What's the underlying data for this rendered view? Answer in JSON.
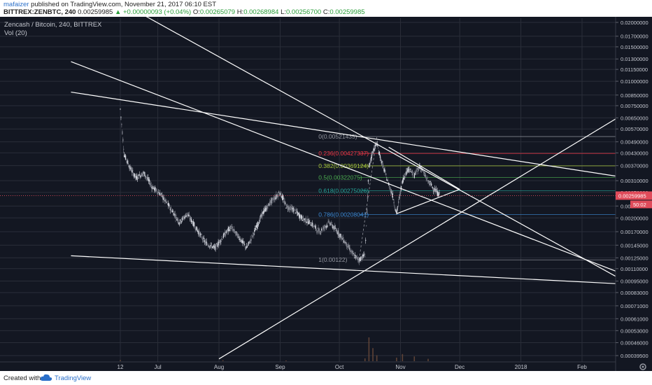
{
  "header": {
    "author": "mafaizer",
    "published": "published on TradingView.com, November 21, 2017 06:10 EST",
    "symbol": "BITTREX:ZENBTC, 240",
    "price": "0.00259985",
    "change_arrow": "▲",
    "change": "+0.00000093 (+0.04%)",
    "o_label": "O:",
    "o_value": "0.00265079",
    "h_label": "H:",
    "h_value": "0.00268984",
    "l_label": "L:",
    "l_value": "0.00256700",
    "c_label": "C:",
    "c_value": "0.00259985"
  },
  "legend": {
    "title": "Zencash / Bitcoin, 240, BITTREX",
    "volume": "Vol (20)",
    "settings_icon": "gear-icon"
  },
  "footer": {
    "created": "Created with",
    "brand": "TradingView",
    "logo_icon": "tradingview-cloud-icon"
  },
  "colors": {
    "background": "#131722",
    "grid": "#2a2e39",
    "up": "#d1d4dc",
    "down": "#787b86",
    "trendline": "#ffffff",
    "price_line": "#e04b5a",
    "axis_text": "#c5c8d0"
  },
  "chart_data": {
    "type": "candlestick",
    "title": "Zencash / Bitcoin, 240, BITTREX",
    "y_tick_labels": [
      "0.02000000",
      "0.01700000",
      "0.01500000",
      "0.01300000",
      "0.01150000",
      "0.01000000",
      "0.00850000",
      "0.00750000",
      "0.00650000",
      "0.00570000",
      "0.00490000",
      "0.00430000",
      "0.00370000",
      "0.00310000",
      "0.00270000",
      "0.00230000",
      "0.00200000",
      "0.00170000",
      "0.00145000",
      "0.00125000",
      "0.00110000",
      "0.00095000",
      "0.00083000",
      "0.00071000",
      "0.00061000",
      "0.00053000",
      "0.00046000",
      "0.00039500"
    ],
    "y_ticks": [
      0.02,
      0.017,
      0.015,
      0.013,
      0.0115,
      0.01,
      0.0085,
      0.0075,
      0.0065,
      0.0057,
      0.0049,
      0.0043,
      0.0037,
      0.0031,
      0.0027,
      0.0023,
      0.002,
      0.0017,
      0.00145,
      0.00125,
      0.0011,
      0.00095,
      0.00083,
      0.00071,
      0.00061,
      0.00053,
      0.00046,
      0.000395
    ],
    "y_scale": "log",
    "x_tick_labels": [
      "12",
      "Jul",
      "Aug",
      "Sep",
      "Oct",
      "Nov",
      "Dec",
      "2018",
      "Feb"
    ],
    "x_ticks": [
      "2017-06-12",
      "2017-07-01",
      "2017-08-01",
      "2017-09-01",
      "2017-10-01",
      "2017-11-01",
      "2017-12-01",
      "2018-01-01",
      "2018-02-01"
    ],
    "last_price": 0.00259985,
    "last_price_label": "0.00259985",
    "countdown_label": "50:02",
    "fibonacci": [
      {
        "level": "0",
        "price": 0.00521435,
        "label": "0(0.00521435)",
        "color": "#9598a1"
      },
      {
        "level": "0.236",
        "price": 0.00427337,
        "label": "0.236(0.00427337)",
        "color": "#f23645"
      },
      {
        "level": "0.382",
        "price": 0.00369124,
        "label": "0.382(0.00369124)",
        "color": "#a8c93a"
      },
      {
        "level": "0.5",
        "price": 0.00322075,
        "label": "0.5(0.00322075)",
        "color": "#4caf50"
      },
      {
        "level": "0.618",
        "price": 0.00275026,
        "label": "0.618(0.00275026)",
        "color": "#26a69a"
      },
      {
        "level": "0.786",
        "price": 0.00208041,
        "label": "0.786(0.00208041)",
        "color": "#3d8bd6"
      },
      {
        "level": "1",
        "price": 0.00122,
        "label": "1(0.00122)",
        "color": "#9598a1"
      }
    ],
    "price_path": [
      {
        "date": "2017-06-12",
        "price": 0.0072
      },
      {
        "date": "2017-06-14",
        "price": 0.0042
      },
      {
        "date": "2017-06-17",
        "price": 0.0036
      },
      {
        "date": "2017-06-20",
        "price": 0.0032
      },
      {
        "date": "2017-06-24",
        "price": 0.0034
      },
      {
        "date": "2017-06-28",
        "price": 0.0029
      },
      {
        "date": "2017-07-03",
        "price": 0.0026
      },
      {
        "date": "2017-07-08",
        "price": 0.0022
      },
      {
        "date": "2017-07-12",
        "price": 0.0019
      },
      {
        "date": "2017-07-16",
        "price": 0.0021
      },
      {
        "date": "2017-07-20",
        "price": 0.0018
      },
      {
        "date": "2017-07-25",
        "price": 0.0015
      },
      {
        "date": "2017-07-30",
        "price": 0.0014
      },
      {
        "date": "2017-08-03",
        "price": 0.0016
      },
      {
        "date": "2017-08-07",
        "price": 0.0018
      },
      {
        "date": "2017-08-11",
        "price": 0.0016
      },
      {
        "date": "2017-08-15",
        "price": 0.0014
      },
      {
        "date": "2017-08-19",
        "price": 0.0017
      },
      {
        "date": "2017-08-23",
        "price": 0.0021
      },
      {
        "date": "2017-08-27",
        "price": 0.0024
      },
      {
        "date": "2017-09-01",
        "price": 0.0027
      },
      {
        "date": "2017-09-04",
        "price": 0.0023
      },
      {
        "date": "2017-09-08",
        "price": 0.0022
      },
      {
        "date": "2017-09-12",
        "price": 0.002
      },
      {
        "date": "2017-09-16",
        "price": 0.0019
      },
      {
        "date": "2017-09-21",
        "price": 0.0017
      },
      {
        "date": "2017-09-26",
        "price": 0.0019
      },
      {
        "date": "2017-09-30",
        "price": 0.0017
      },
      {
        "date": "2017-10-04",
        "price": 0.0015
      },
      {
        "date": "2017-10-08",
        "price": 0.0013
      },
      {
        "date": "2017-10-11",
        "price": 0.00122
      },
      {
        "date": "2017-10-14",
        "price": 0.0013
      },
      {
        "date": "2017-10-16",
        "price": 0.0036
      },
      {
        "date": "2017-10-18",
        "price": 0.0044
      },
      {
        "date": "2017-10-20",
        "price": 0.0048
      },
      {
        "date": "2017-10-22",
        "price": 0.004
      },
      {
        "date": "2017-10-25",
        "price": 0.0032
      },
      {
        "date": "2017-10-28",
        "price": 0.0026
      },
      {
        "date": "2017-10-30",
        "price": 0.0021
      },
      {
        "date": "2017-11-02",
        "price": 0.0031
      },
      {
        "date": "2017-11-05",
        "price": 0.0036
      },
      {
        "date": "2017-11-08",
        "price": 0.0033
      },
      {
        "date": "2017-11-11",
        "price": 0.0037
      },
      {
        "date": "2017-11-14",
        "price": 0.0032
      },
      {
        "date": "2017-11-18",
        "price": 0.0028
      },
      {
        "date": "2017-11-21",
        "price": 0.0026
      }
    ],
    "volume_spikes": [
      {
        "date": "2017-06-12",
        "volume": 0.05
      },
      {
        "date": "2017-08-03",
        "volume": 0.04
      },
      {
        "date": "2017-09-04",
        "volume": 0.03
      },
      {
        "date": "2017-10-14",
        "volume": 0.12
      },
      {
        "date": "2017-10-16",
        "volume": 1.0
      },
      {
        "date": "2017-10-18",
        "volume": 0.55
      },
      {
        "date": "2017-10-20",
        "volume": 0.25
      },
      {
        "date": "2017-10-30",
        "volume": 0.15
      },
      {
        "date": "2017-11-02",
        "volume": 0.3
      },
      {
        "date": "2017-11-08",
        "volume": 0.2
      },
      {
        "date": "2017-11-15",
        "volume": 0.1
      }
    ],
    "trendlines": [
      {
        "from": {
          "date": "2017-05-18",
          "price": 0.0088
        },
        "to": {
          "date": "2018-02-20",
          "price": 0.00325
        }
      },
      {
        "from": {
          "date": "2017-05-30",
          "price": 0.03
        },
        "to": {
          "date": "2018-02-20",
          "price": 0.00098
        }
      },
      {
        "from": {
          "date": "2017-05-18",
          "price": 0.0126
        },
        "to": {
          "date": "2018-02-20",
          "price": 0.00105
        }
      },
      {
        "from": {
          "date": "2017-05-18",
          "price": 0.00128
        },
        "to": {
          "date": "2018-02-20",
          "price": 0.00092
        }
      },
      {
        "from": {
          "date": "2017-08-01",
          "price": 0.00038
        },
        "to": {
          "date": "2018-02-20",
          "price": 0.0066
        }
      },
      {
        "from": {
          "date": "2017-10-26",
          "price": 0.0046
        },
        "to": {
          "date": "2017-12-01",
          "price": 0.0028
        }
      },
      {
        "from": {
          "date": "2017-10-30",
          "price": 0.0021
        },
        "to": {
          "date": "2017-12-01",
          "price": 0.0028
        }
      }
    ],
    "fib_range": {
      "start": "2017-10-11",
      "end": "2018-02-20"
    },
    "fib_anchor_line": {
      "from": {
        "date": "2017-10-11",
        "price": 0.00122
      },
      "to": {
        "date": "2017-10-20",
        "price": 0.00521435
      }
    }
  }
}
